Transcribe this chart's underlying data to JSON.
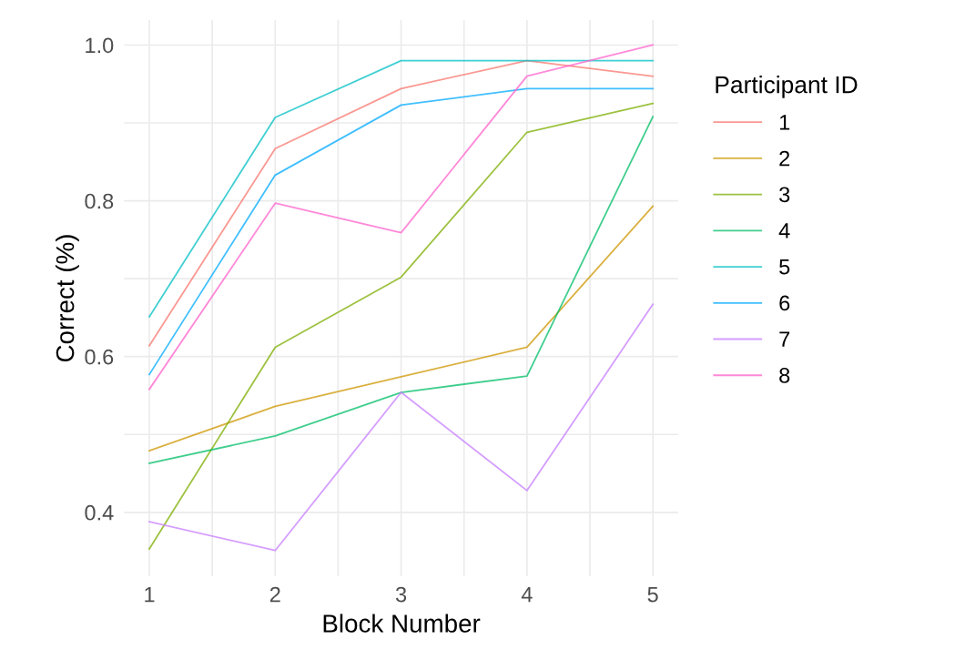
{
  "chart_data": {
    "type": "line",
    "xlabel": "Block Number",
    "ylabel": "Correct (%)",
    "legend_title": "Participant ID",
    "x": [
      1,
      2,
      3,
      4,
      5
    ],
    "series": [
      {
        "name": "1",
        "color": "#f8766d",
        "values": [
          0.614,
          0.867,
          0.944,
          0.98,
          0.96
        ]
      },
      {
        "name": "2",
        "color": "#cd9600",
        "values": [
          0.479,
          0.536,
          0.574,
          0.612,
          0.793
        ]
      },
      {
        "name": "3",
        "color": "#7cae00",
        "values": [
          0.353,
          0.612,
          0.702,
          0.888,
          0.925
        ]
      },
      {
        "name": "4",
        "color": "#00be67",
        "values": [
          0.463,
          0.498,
          0.554,
          0.575,
          0.908
        ]
      },
      {
        "name": "5",
        "color": "#00bfc4",
        "values": [
          0.651,
          0.907,
          0.98,
          0.98,
          0.98
        ]
      },
      {
        "name": "6",
        "color": "#00a9ff",
        "values": [
          0.577,
          0.833,
          0.923,
          0.944,
          0.944
        ]
      },
      {
        "name": "7",
        "color": "#c77cff",
        "values": [
          0.388,
          0.351,
          0.554,
          0.428,
          0.667
        ]
      },
      {
        "name": "8",
        "color": "#ff61cc",
        "values": [
          0.558,
          0.797,
          0.759,
          0.96,
          1.0
        ]
      }
    ],
    "xlim": [
      0.8,
      5.2
    ],
    "ylim": [
      0.318,
      1.032
    ],
    "xticks": [
      1,
      {
        "value": 1.5,
        "label": null
      },
      2,
      {
        "value": 2.5,
        "label": null
      },
      3,
      {
        "value": 3.5,
        "label": null
      },
      4,
      {
        "value": 4.5,
        "label": null
      },
      5
    ],
    "yticks": [
      {
        "value": 0.4,
        "label": "0.4"
      },
      {
        "value": 0.5,
        "label": null
      },
      {
        "value": 0.6,
        "label": "0.6"
      },
      {
        "value": 0.7,
        "label": null
      },
      {
        "value": 0.8,
        "label": "0.8"
      },
      {
        "value": 0.9,
        "label": null
      },
      {
        "value": 1.0,
        "label": "1.0"
      }
    ],
    "grid": true,
    "legend": "right",
    "marker": "none",
    "line_style": "solid"
  }
}
